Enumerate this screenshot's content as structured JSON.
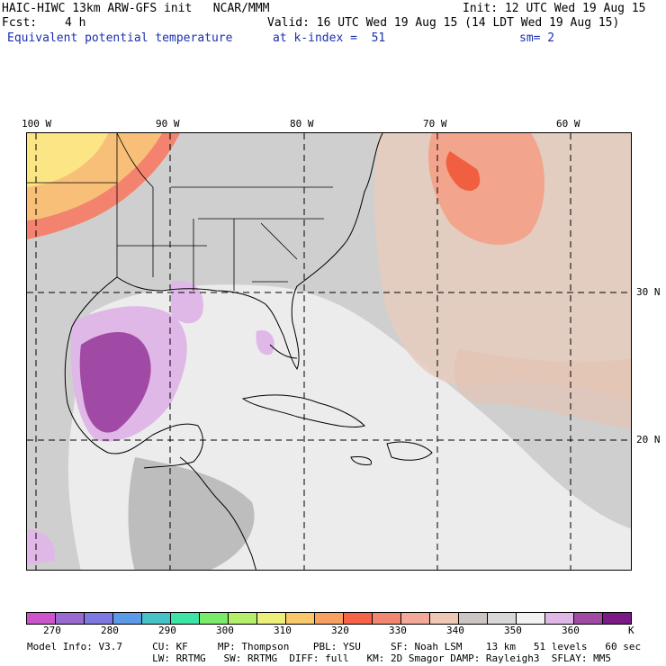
{
  "header": {
    "model_title": "HAIC-HIWC 13km ARW-GFS init   NCAR/MMM",
    "init": "Init: 12 UTC Wed 19 Aug 15",
    "fcst_label": "Fcst:",
    "fcst_value": "4 h",
    "valid": "Valid: 16 UTC Wed 19 Aug 15 (14 LDT Wed 19 Aug 15)",
    "field_name": "Equivalent potential temperature",
    "level": "at k-index =  51",
    "smoothing": "sm= 2"
  },
  "map": {
    "lon_labels": [
      "100 W",
      "90 W",
      "80 W",
      "70 W",
      "60 W"
    ],
    "lat_labels": [
      "30 N",
      "20 N"
    ]
  },
  "colorbar": {
    "colors": [
      "#cc55cc",
      "#9a6ad0",
      "#7f78e0",
      "#5a9ae8",
      "#44c2c6",
      "#3ee4a6",
      "#79ea6a",
      "#b4ee6a",
      "#ecf07a",
      "#f8c86a",
      "#f8a060",
      "#f66448",
      "#f28670",
      "#f4a898",
      "#eec8b4",
      "#cbc6c4",
      "#d8d8d8",
      "#f2f2f2",
      "#e0b8e8",
      "#a04aa6",
      "#7b1a86"
    ],
    "tick_labels": [
      "270",
      "280",
      "290",
      "300",
      "310",
      "320",
      "330",
      "340",
      "350",
      "360"
    ],
    "unit": "K"
  },
  "model_info": {
    "line1": "Model Info: V3.7     CU: KF     MP: Thompson    PBL: YSU     SF: Noah LSM    13 km   51 levels   60 sec",
    "line2": "                     LW: RRTMG   SW: RRTMG  DIFF: full   KM: 2D Smagor DAMP: Rayleigh3  SFLAY: MM5"
  }
}
